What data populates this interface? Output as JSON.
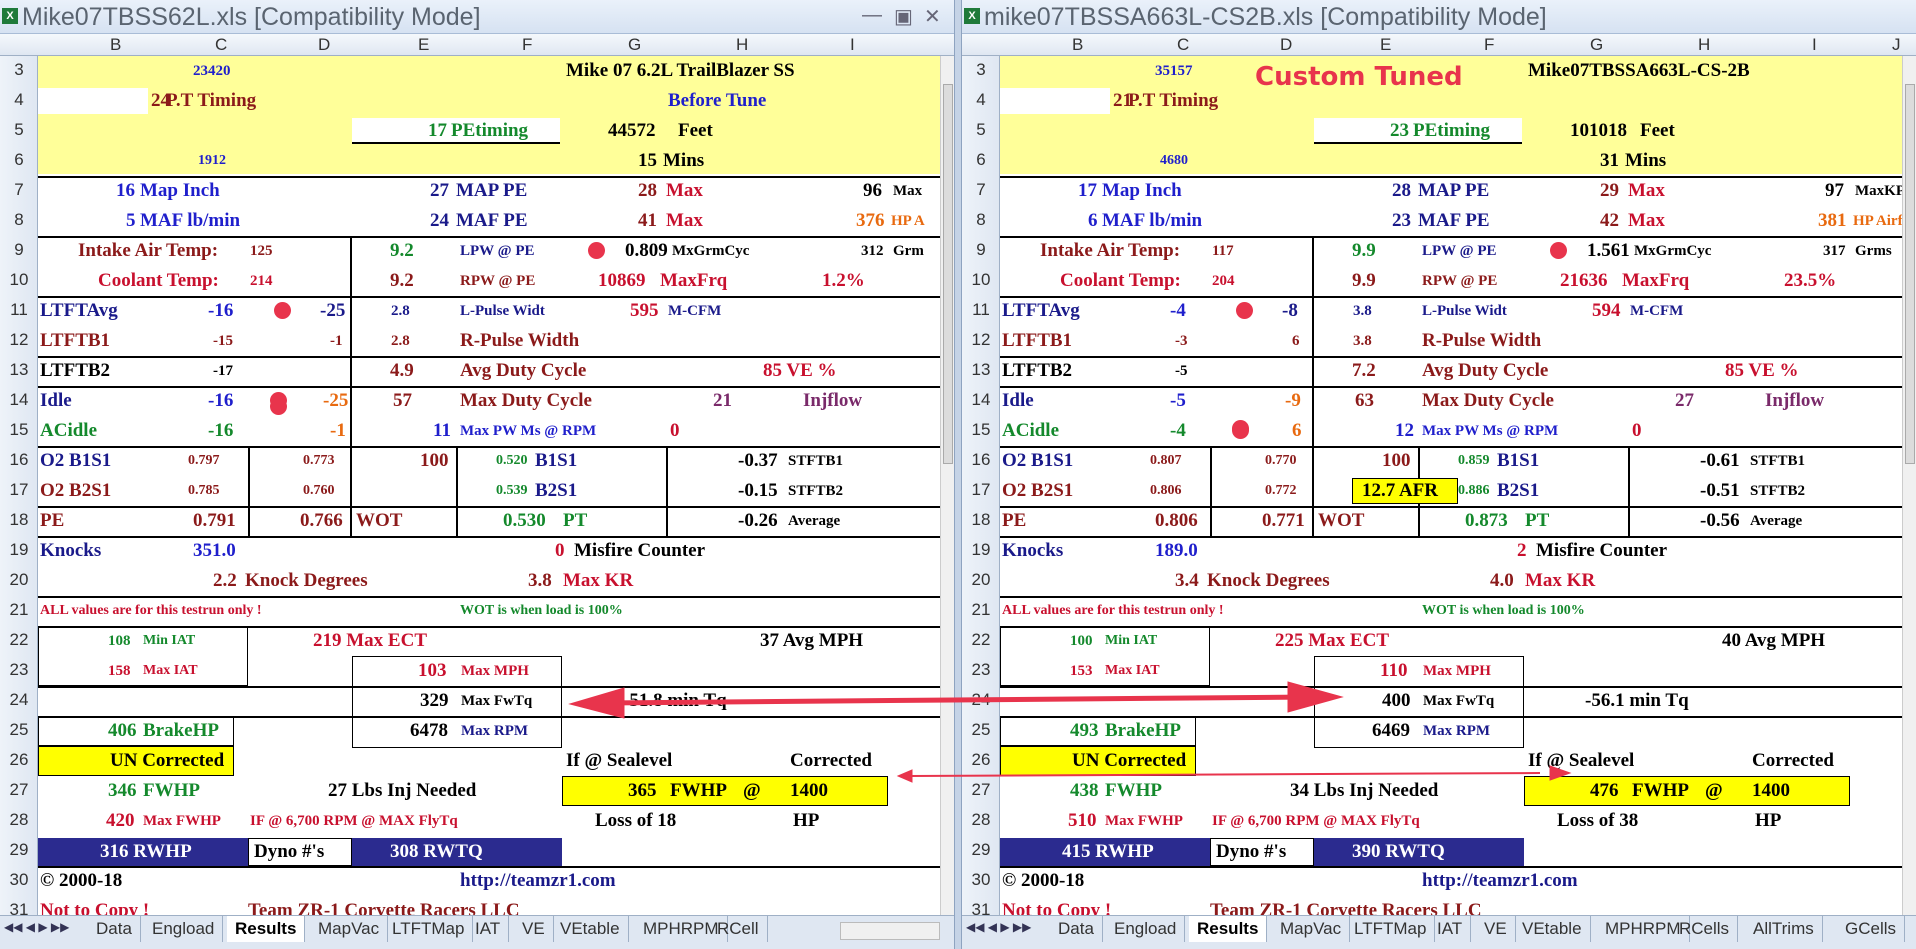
{
  "left": {
    "title": "Mike07TBSS62L.xls  [Compatibility Mode]",
    "cols": [
      "B",
      "C",
      "D",
      "E",
      "F",
      "G",
      "H",
      "I"
    ],
    "v": {
      "n23420": "23420",
      "hdr": "Mike 07 6.2L TrailBlazer SS",
      "pt": "24",
      "ptl": "P.T Timing",
      "bt": "Before Tune",
      "pe": "17",
      "pel": "PEtiming",
      "ft": "44572",
      "ftl": "Feet",
      "n1912": "1912",
      "mins": "15",
      "minsl": "Mins",
      "map": "16",
      "mapl": "Map Inch",
      "mappe": "27",
      "mappel": "MAP PE",
      "mapmax": "28",
      "max1": "Max",
      "kpa": "96",
      "kpal": "Max",
      "maf": "5",
      "mafl": "MAF lb/min",
      "mafpe": "24",
      "mafpel": "MAF PE",
      "mafmax": "41",
      "max2": "Max",
      "hp": "376",
      "hpl": "HP A",
      "iatl": "Intake Air Temp:",
      "iat": "125",
      "lpw": "9.2",
      "lpwl": "LPW @ PE",
      "mx": "0.809",
      "mxl": "MxGrmCyc",
      "grm": "312",
      "grml": "Grm",
      "ctl": "Coolant Temp:",
      "ct": "214",
      "rpw": "9.2",
      "rpwl": "RPW @ PE",
      "mf": "10869",
      "mfl": "MaxFrq",
      "pct": "1.2%",
      "ltavgl": "LTFTAvg",
      "ltavg": "-16",
      "ltavg2": "-25",
      "lpulse": "2.8",
      "lpulsel": "L-Pulse Widt",
      "cfm": "595",
      "cfml": "M-CFM",
      "lt1l": "LTFTB1",
      "lt1": "-15",
      "lt1b": "-1",
      "rpulse": "2.8",
      "rpulsel": "R-Pulse Width",
      "lt2l": "LTFTB2",
      "lt2": "-17",
      "avgd": "4.9",
      "avgdl": "Avg Duty Cycle",
      "ve": "85 VE %",
      "idlel": "Idle",
      "idle": "-16",
      "idle2": "-25",
      "maxd": "57",
      "maxdl": "Max Duty Cycle",
      "inj": "21",
      "injl": "Injflow",
      "acl": "ACidle",
      "ac": "-16",
      "ac2": "-1",
      "pw": "11",
      "pwl": "Max PW Ms @ RPM",
      "pw0": "0",
      "o1l": "O2 B1S1",
      "o1a": "0.797",
      "o1b": "0.773",
      "o1c": "100",
      "o1d": "0.520",
      "o1e": "B1S1",
      "st1": "-0.37",
      "st1l": "STFTB1",
      "o2l": "O2 B2S1",
      "o2a": "0.785",
      "o2b": "0.760",
      "afr": "",
      "o2d": "0.539",
      "o2e": "B2S1",
      "st2": "-0.15",
      "st2l": "STFTB2",
      "pel2": "PE",
      "pev": "0.791",
      "wot": "0.766",
      "wotl": "WOT",
      "ptv": "0.530",
      "ptl2": "PT",
      "avg": "-0.26",
      "avgl": "Average",
      "knl": "Knocks",
      "kn": "351.0",
      "mis": "0",
      "misl": "Misfire Counter",
      "kd": "2.2",
      "kdl": "Knock  Degrees",
      "kr": "3.8",
      "krl": "Max KR",
      "note1": "ALL values are for this testrun only !",
      "note2": "WOT is when load is 100%",
      "miniat": "108",
      "miniatl": "Min IAT",
      "ect": "219 Max ECT",
      "avgmph": "37 Avg MPH",
      "maxiat": "158",
      "maxiatl": "Max IAT",
      "mph": "103",
      "mphl": "Max MPH",
      "fwtq": "329",
      "fwtql": "Max FwTq",
      "mintq": "-51.8 min Tq",
      "bhp": "406",
      "bhpl": "BrakeHP",
      "rpm": "6478",
      "rpml": "Max RPM",
      "unc": "UN Corrected",
      "sea": "If @ Sealevel",
      "cor": "Corrected",
      "fwhp": "346",
      "fwhpl": "FWHP",
      "lbs": "27 Lbs Inj Needed",
      "cfw": "365",
      "cfwl": "FWHP",
      "at": "@",
      "crpm": "1400",
      "mfw": "420",
      "mfwl": "Max FWHP",
      "if67": "IF @ 6,700 RPM @ MAX FlyTq",
      "loss": "Loss of 18",
      "hpu": "HP",
      "rwhp": "316 RWHP",
      "dyno": "Dyno #'s",
      "rwtq": "308 RWTQ",
      "copy": "© 2000-18",
      "url": "http://teamzr1.com",
      "notc": "Not to Copy !",
      "team": "Team ZR-1 Corvette Racers LLC",
      "tuned": ""
    },
    "tabs": [
      "Data",
      "Engload",
      "Results",
      "MapVac",
      "LTFTMap",
      "IAT",
      "VE",
      "VEtable",
      "MPHRPM",
      "RCell"
    ]
  },
  "right": {
    "title": "mike07TBSSA663L-CS2B.xls  [Compatibility Mode]",
    "cols": [
      "B",
      "C",
      "D",
      "E",
      "F",
      "G",
      "H",
      "I",
      "J"
    ],
    "v": {
      "n23420": "35157",
      "hdr": "Mike07TBSSA663L-CS-2B",
      "pt": "21",
      "ptl": "P.T Timing",
      "bt": "",
      "pe": "23",
      "pel": "PEtiming",
      "ft": "101018",
      "ftl": "Feet",
      "n1912": "4680",
      "mins": "31",
      "minsl": "Mins",
      "map": "17",
      "mapl": "Map Inch",
      "mappe": "28",
      "mappel": "MAP PE",
      "mapmax": "29",
      "max1": "Max",
      "kpa": "97",
      "kpal": "MaxKPA",
      "maf": "6",
      "mafl": "MAF lb/min",
      "mafpe": "23",
      "mafpel": "MAF PE",
      "mafmax": "42",
      "max2": "Max",
      "hp": "381",
      "hpl": "HP Airflow",
      "iatl": "Intake Air Temp:",
      "iat": "117",
      "lpw": "9.9",
      "lpwl": "LPW @ PE",
      "mx": "1.561",
      "mxl": "MxGrmCyc",
      "grm": "317",
      "grml": "Grms",
      "ctl": "Coolant Temp:",
      "ct": "204",
      "rpw": "9.9",
      "rpwl": "RPW @ PE",
      "mf": "21636",
      "mfl": "MaxFrq",
      "pct": "23.5%",
      "ltavgl": "LTFTAvg",
      "ltavg": "-4",
      "ltavg2": "-8",
      "lpulse": "3.8",
      "lpulsel": "L-Pulse Widt",
      "cfm": "594",
      "cfml": "M-CFM",
      "lt1l": "LTFTB1",
      "lt1": "-3",
      "lt1b": "6",
      "rpulse": "3.8",
      "rpulsel": "R-Pulse Width",
      "lt2l": "LTFTB2",
      "lt2": "-5",
      "avgd": "7.2",
      "avgdl": "Avg Duty Cycle",
      "ve": "85 VE %",
      "idlel": "Idle",
      "idle": "-5",
      "idle2": "-9",
      "maxd": "63",
      "maxdl": "Max Duty Cycle",
      "inj": "27",
      "injl": "Injflow",
      "acl": "ACidle",
      "ac": "-4",
      "ac2": "6",
      "pw": "12",
      "pwl": "Max PW Ms @ RPM",
      "pw0": "0",
      "o1l": "O2 B1S1",
      "o1a": "0.807",
      "o1b": "0.770",
      "o1c": "100",
      "o1d": "0.859",
      "o1e": "B1S1",
      "st1": "-0.61",
      "st1l": "STFTB1",
      "o2l": "O2 B2S1",
      "o2a": "0.806",
      "o2b": "0.772",
      "afr": "12.7 AFR",
      "o2d": "0.886",
      "o2e": "B2S1",
      "st2": "-0.51",
      "st2l": "STFTB2",
      "pel2": "PE",
      "pev": "0.806",
      "wot": "0.771",
      "wotl": "WOT",
      "ptv": "0.873",
      "ptl2": "PT",
      "avg": "-0.56",
      "avgl": "Average",
      "knl": "Knocks",
      "kn": "189.0",
      "mis": "2",
      "misl": "Misfire Counter",
      "kd": "3.4",
      "kdl": "Knock  Degrees",
      "kr": "4.0",
      "krl": "Max KR",
      "note1": "ALL values are for this testrun only !",
      "note2": "WOT is when load is 100%",
      "miniat": "100",
      "miniatl": "Min IAT",
      "ect": "225 Max ECT",
      "avgmph": "40 Avg MPH",
      "maxiat": "153",
      "maxiatl": "Max IAT",
      "mph": "110",
      "mphl": "Max MPH",
      "fwtq": "400",
      "fwtql": "Max FwTq",
      "mintq": "-56.1 min Tq",
      "bhp": "493",
      "bhpl": "BrakeHP",
      "rpm": "6469",
      "rpml": "Max RPM",
      "unc": "UN Corrected",
      "sea": "If @ Sealevel",
      "cor": "Corrected",
      "fwhp": "438",
      "fwhpl": "FWHP",
      "lbs": "34 Lbs Inj Needed",
      "cfw": "476",
      "cfwl": "FWHP",
      "at": "@",
      "crpm": "1400",
      "mfw": "510",
      "mfwl": "Max FWHP",
      "if67": "IF @ 6,700 RPM @ MAX FlyTq",
      "loss": "Loss of 38",
      "hpu": "HP",
      "rwhp": "415 RWHP",
      "dyno": "Dyno #'s",
      "rwtq": "390 RWTQ",
      "copy": "© 2000-18",
      "url": "http://teamzr1.com",
      "notc": "Not to Copy !",
      "team": "Team ZR-1 Corvette Racers LLC",
      "tuned": "Custom Tuned"
    },
    "tabs": [
      "Data",
      "Engload",
      "Results",
      "MapVac",
      "LTFTMap",
      "IAT",
      "VE",
      "VEtable",
      "MPHRPM",
      "RCells",
      "AllTrims",
      "GCells"
    ]
  },
  "rows": [
    "3",
    "4",
    "5",
    "6",
    "7",
    "8",
    "9",
    "10",
    "11",
    "12",
    "13",
    "14",
    "15",
    "16",
    "17",
    "18",
    "19",
    "20",
    "21",
    "22",
    "23",
    "24",
    "25",
    "26",
    "27",
    "28",
    "29",
    "30",
    "31"
  ],
  "colors": {
    "accent_yellow": "#ffff99",
    "highlight_yellow": "#ffff00",
    "navy": "#2b2b8f",
    "arrow": "#e8344c"
  }
}
